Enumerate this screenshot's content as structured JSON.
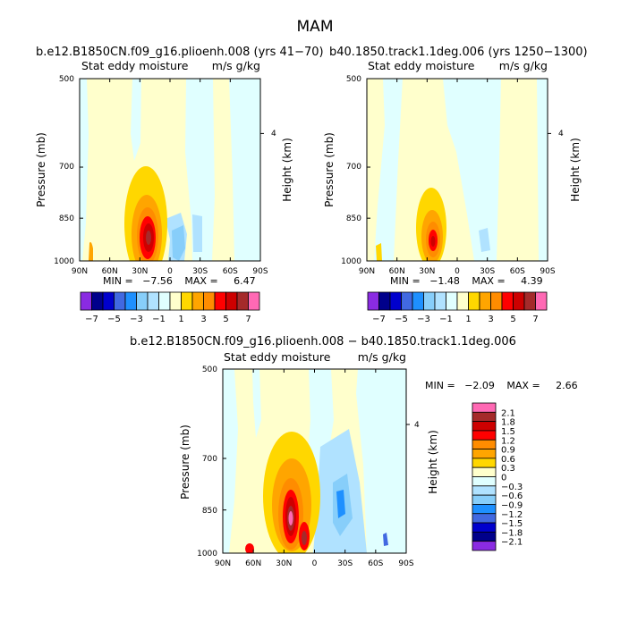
{
  "figure_title": "MAM",
  "color_levels": {
    "top": [
      "-7",
      "-5",
      "-3",
      "-1",
      "1",
      "3",
      "5",
      "7"
    ],
    "diff": [
      "2.1",
      "1.8",
      "1.5",
      "1.2",
      "0.9",
      "0.6",
      "0.3",
      "0",
      "-0.3",
      "-0.6",
      "-0.9",
      "-1.2",
      "-1.5",
      "-1.8",
      "-2.1"
    ]
  },
  "colors": {
    "top_colorbar": [
      "#8a2be2",
      "#00008b",
      "#0000cd",
      "#4169e1",
      "#1e90ff",
      "#87cefa",
      "#b0e2ff",
      "#e0ffff",
      "#ffffcc",
      "#ffd700",
      "#ffa500",
      "#ff8c00",
      "#ff0000",
      "#cd0000",
      "#a52a2a",
      "#ff69b4"
    ],
    "diff_colorbar_top_to_bottom": [
      "#ff69b4",
      "#a52a2a",
      "#cd0000",
      "#ff0000",
      "#ff8c00",
      "#ffa500",
      "#ffd700",
      "#ffffcc",
      "#e0ffff",
      "#b0e2ff",
      "#87cefa",
      "#1e90ff",
      "#4169e1",
      "#0000cd",
      "#00008b",
      "#8a2be2"
    ]
  },
  "chart_data": [
    {
      "type": "heatmap",
      "panel": "left",
      "title": "b.e12.B1850CN.f09_g16.plioenh.008 (yrs 41−70)",
      "subtitle_left": "Stat eddy moisture",
      "subtitle_right": "m/s g/kg",
      "xlabel": "",
      "ylabel": "Pressure (mb)",
      "ylabel_right": "Height (km)",
      "x_ticks": [
        "90N",
        "60N",
        "30N",
        "0",
        "30S",
        "60S",
        "90S"
      ],
      "y_ticks": [
        "500",
        "700",
        "850",
        "1000"
      ],
      "y_right_ticks": [
        "4"
      ],
      "min": -7.56,
      "max": 6.47,
      "min_label": "MIN =",
      "min_value": "−7.56",
      "max_label": "MAX =",
      "max_value": "6.47",
      "features": [
        {
          "lat": 25,
          "p": 930,
          "value": 6.47
        },
        {
          "lat": -5,
          "p": 960,
          "value": -1.0
        }
      ]
    },
    {
      "type": "heatmap",
      "panel": "right",
      "title": "b40.1850.track1.1deg.006 (yrs 1250−1300)",
      "subtitle_left": "Stat eddy moisture",
      "subtitle_right": "m/s g/kg",
      "xlabel": "",
      "ylabel": "Pressure (mb)",
      "ylabel_right": "Height (km)",
      "x_ticks": [
        "90N",
        "60N",
        "30N",
        "0",
        "30S",
        "60S",
        "90S"
      ],
      "y_ticks": [
        "500",
        "700",
        "850",
        "1000"
      ],
      "y_right_ticks": [
        "4"
      ],
      "min": -1.48,
      "max": 4.39,
      "min_label": "MIN =",
      "min_value": "−1.48",
      "max_label": "MAX =",
      "max_value": "4.39",
      "features": [
        {
          "lat": 28,
          "p": 930,
          "value": 4.39
        }
      ]
    },
    {
      "type": "heatmap",
      "panel": "difference",
      "title": "b.e12.B1850CN.f09_g16.plioenh.008 − b40.1850.track1.1deg.006",
      "subtitle_left": "Stat eddy moisture",
      "subtitle_right": "m/s g/kg",
      "xlabel": "",
      "ylabel": "Pressure (mb)",
      "ylabel_right": "Height (km)",
      "x_ticks": [
        "90N",
        "60N",
        "30N",
        "0",
        "30S",
        "60S",
        "90S"
      ],
      "y_ticks": [
        "500",
        "700",
        "850",
        "1000"
      ],
      "y_right_ticks": [
        "4"
      ],
      "min": -2.09,
      "max": 2.66,
      "min_label": "MIN =",
      "min_value": "−2.09",
      "max_label": "MAX =",
      "max_value": "2.66",
      "features": [
        {
          "lat": 22,
          "p": 860,
          "value": 2.66
        },
        {
          "lat": -30,
          "p": 860,
          "value": -1.0
        }
      ]
    }
  ]
}
